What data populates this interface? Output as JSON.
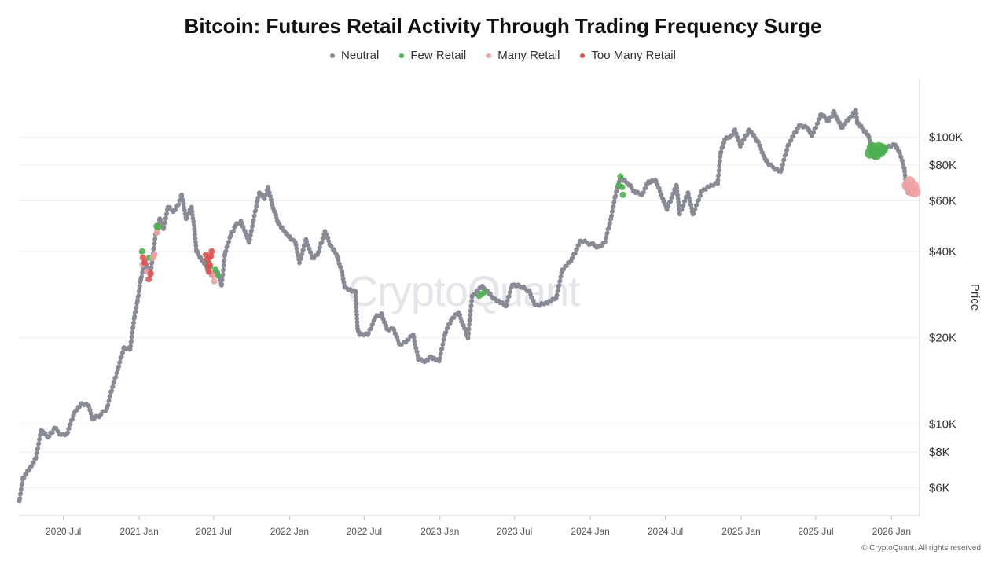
{
  "chart_data": {
    "type": "scatter",
    "title": "Bitcoin: Futures Retail Activity Through Trading Frequency Surge",
    "ylabel": "Price",
    "yscale": "log",
    "ylim": [
      4800,
      160000
    ],
    "xlim": [
      "2020-03-15",
      "2026-03-10"
    ],
    "x_ticks": [
      {
        "date": "2020-07-01",
        "label": "2020 Jul"
      },
      {
        "date": "2021-01-01",
        "label": "2021 Jan"
      },
      {
        "date": "2021-07-01",
        "label": "2021 Jul"
      },
      {
        "date": "2022-01-01",
        "label": "2022 Jan"
      },
      {
        "date": "2022-07-01",
        "label": "2022 Jul"
      },
      {
        "date": "2023-01-01",
        "label": "2023 Jan"
      },
      {
        "date": "2023-07-01",
        "label": "2023 Jul"
      },
      {
        "date": "2024-01-01",
        "label": "2024 Jan"
      },
      {
        "date": "2024-07-01",
        "label": "2024 Jul"
      },
      {
        "date": "2025-01-01",
        "label": "2025 Jan"
      },
      {
        "date": "2025-07-01",
        "label": "2025 Jul"
      },
      {
        "date": "2026-01-01",
        "label": "2026 Jan"
      }
    ],
    "y_ticks": [
      {
        "value": 6000,
        "label": "$6K"
      },
      {
        "value": 8000,
        "label": "$8K"
      },
      {
        "value": 10000,
        "label": "$10K"
      },
      {
        "value": 20000,
        "label": "$20K"
      },
      {
        "value": 40000,
        "label": "$40K"
      },
      {
        "value": 60000,
        "label": "$60K"
      },
      {
        "value": 80000,
        "label": "$80K"
      },
      {
        "value": 100000,
        "label": "$100K"
      }
    ],
    "legend": [
      {
        "name": "Neutral",
        "color": "#8a8a96"
      },
      {
        "name": "Few Retail",
        "color": "#4caf50"
      },
      {
        "name": "Many Retail",
        "color": "#f0a0a0"
      },
      {
        "name": "Too Many Retail",
        "color": "#e05050"
      }
    ],
    "series": [
      {
        "name": "Neutral",
        "color": "#8a8a96",
        "points": [
          [
            "2020-03-16",
            5400
          ],
          [
            "2020-03-25",
            6500
          ],
          [
            "2020-04-10",
            7000
          ],
          [
            "2020-04-25",
            7600
          ],
          [
            "2020-05-08",
            9500
          ],
          [
            "2020-05-25",
            9000
          ],
          [
            "2020-06-10",
            9700
          ],
          [
            "2020-06-25",
            9200
          ],
          [
            "2020-07-10",
            9300
          ],
          [
            "2020-07-28",
            11000
          ],
          [
            "2020-08-15",
            11800
          ],
          [
            "2020-08-31",
            11600
          ],
          [
            "2020-09-10",
            10400
          ],
          [
            "2020-09-30",
            10800
          ],
          [
            "2020-10-15",
            11400
          ],
          [
            "2020-10-25",
            13000
          ],
          [
            "2020-11-10",
            15500
          ],
          [
            "2020-11-25",
            18500
          ],
          [
            "2020-12-10",
            18200
          ],
          [
            "2020-12-20",
            23500
          ],
          [
            "2020-12-28",
            27000
          ],
          [
            "2021-01-05",
            32000
          ],
          [
            "2021-01-15",
            37000
          ],
          [
            "2021-01-28",
            33000
          ],
          [
            "2021-02-10",
            46000
          ],
          [
            "2021-02-20",
            52000
          ],
          [
            "2021-03-01",
            48000
          ],
          [
            "2021-03-12",
            57000
          ],
          [
            "2021-03-25",
            55000
          ],
          [
            "2021-04-05",
            58000
          ],
          [
            "2021-04-14",
            63000
          ],
          [
            "2021-04-25",
            52000
          ],
          [
            "2021-05-08",
            57000
          ],
          [
            "2021-05-15",
            48000
          ],
          [
            "2021-05-20",
            40000
          ],
          [
            "2021-06-10",
            36000
          ],
          [
            "2021-06-25",
            33000
          ],
          [
            "2021-07-10",
            34000
          ],
          [
            "2021-07-20",
            30500
          ],
          [
            "2021-07-28",
            39000
          ],
          [
            "2021-08-10",
            45000
          ],
          [
            "2021-08-22",
            49000
          ],
          [
            "2021-09-05",
            51000
          ],
          [
            "2021-09-15",
            47000
          ],
          [
            "2021-09-25",
            43000
          ],
          [
            "2021-10-05",
            51000
          ],
          [
            "2021-10-15",
            60000
          ],
          [
            "2021-10-20",
            64000
          ],
          [
            "2021-11-01",
            61000
          ],
          [
            "2021-11-10",
            67000
          ],
          [
            "2021-11-20",
            58000
          ],
          [
            "2021-12-05",
            50000
          ],
          [
            "2021-12-20",
            47000
          ],
          [
            "2022-01-05",
            44000
          ],
          [
            "2022-01-15",
            43000
          ],
          [
            "2022-01-25",
            36500
          ],
          [
            "2022-02-10",
            44000
          ],
          [
            "2022-02-25",
            38000
          ],
          [
            "2022-03-10",
            39000
          ],
          [
            "2022-03-28",
            47000
          ],
          [
            "2022-04-10",
            42000
          ],
          [
            "2022-04-25",
            39000
          ],
          [
            "2022-05-08",
            34000
          ],
          [
            "2022-05-15",
            30000
          ],
          [
            "2022-05-28",
            29500
          ],
          [
            "2022-06-10",
            29000
          ],
          [
            "2022-06-15",
            21500
          ],
          [
            "2022-06-20",
            20500
          ],
          [
            "2022-07-10",
            20500
          ],
          [
            "2022-07-28",
            23500
          ],
          [
            "2022-08-12",
            24300
          ],
          [
            "2022-08-25",
            21500
          ],
          [
            "2022-09-10",
            21500
          ],
          [
            "2022-09-25",
            19000
          ],
          [
            "2022-10-10",
            19300
          ],
          [
            "2022-10-28",
            20500
          ],
          [
            "2022-11-10",
            16800
          ],
          [
            "2022-11-25",
            16500
          ],
          [
            "2022-12-10",
            17200
          ],
          [
            "2022-12-30",
            16600
          ],
          [
            "2023-01-14",
            20800
          ],
          [
            "2023-01-28",
            23000
          ],
          [
            "2023-02-15",
            24500
          ],
          [
            "2023-03-10",
            20000
          ],
          [
            "2023-03-20",
            28000
          ],
          [
            "2023-04-14",
            30300
          ],
          [
            "2023-05-10",
            27500
          ],
          [
            "2023-06-10",
            25800
          ],
          [
            "2023-06-25",
            30500
          ],
          [
            "2023-07-15",
            30200
          ],
          [
            "2023-08-05",
            29200
          ],
          [
            "2023-08-20",
            26000
          ],
          [
            "2023-09-15",
            26500
          ],
          [
            "2023-10-10",
            27500
          ],
          [
            "2023-10-25",
            34500
          ],
          [
            "2023-11-15",
            37000
          ],
          [
            "2023-12-08",
            43500
          ],
          [
            "2024-01-03",
            42500
          ],
          [
            "2024-01-20",
            41500
          ],
          [
            "2024-02-05",
            43000
          ],
          [
            "2024-02-20",
            52000
          ],
          [
            "2024-03-01",
            62000
          ],
          [
            "2024-03-13",
            72000
          ],
          [
            "2024-04-01",
            69000
          ],
          [
            "2024-04-20",
            64000
          ],
          [
            "2024-05-05",
            63000
          ],
          [
            "2024-05-21",
            70000
          ],
          [
            "2024-06-07",
            71000
          ],
          [
            "2024-06-25",
            61000
          ],
          [
            "2024-07-05",
            56000
          ],
          [
            "2024-07-28",
            68000
          ],
          [
            "2024-08-05",
            54000
          ],
          [
            "2024-08-25",
            64000
          ],
          [
            "2024-09-06",
            54000
          ],
          [
            "2024-09-28",
            65000
          ],
          [
            "2024-10-20",
            68000
          ],
          [
            "2024-11-05",
            69000
          ],
          [
            "2024-11-12",
            88000
          ],
          [
            "2024-11-22",
            98000
          ],
          [
            "2024-12-05",
            100000
          ],
          [
            "2024-12-17",
            106000
          ],
          [
            "2024-12-30",
            93000
          ],
          [
            "2025-01-20",
            106000
          ],
          [
            "2025-02-10",
            97000
          ],
          [
            "2025-02-28",
            84000
          ],
          [
            "2025-03-10",
            80000
          ],
          [
            "2025-04-07",
            76000
          ],
          [
            "2025-04-25",
            94000
          ],
          [
            "2025-05-22",
            110000
          ],
          [
            "2025-06-10",
            108000
          ],
          [
            "2025-06-22",
            101000
          ],
          [
            "2025-07-14",
            120000
          ],
          [
            "2025-08-01",
            114000
          ],
          [
            "2025-08-14",
            123000
          ],
          [
            "2025-09-01",
            108000
          ],
          [
            "2025-09-20",
            116000
          ],
          [
            "2025-10-06",
            124000
          ],
          [
            "2025-10-10",
            112000
          ],
          [
            "2025-11-05",
            102000
          ],
          [
            "2025-11-21",
            85000
          ],
          [
            "2025-12-10",
            92000
          ],
          [
            "2026-01-10",
            94000
          ],
          [
            "2026-01-20",
            89000
          ],
          [
            "2026-02-01",
            78000
          ],
          [
            "2026-02-05",
            68000
          ],
          [
            "2026-02-10",
            64000
          ]
        ]
      },
      {
        "name": "Few Retail",
        "color": "#4caf50",
        "points": [
          [
            "2021-01-08",
            40000
          ],
          [
            "2021-01-25",
            38000
          ],
          [
            "2021-02-12",
            49000
          ],
          [
            "2021-02-16",
            48500
          ],
          [
            "2021-06-18",
            37000
          ],
          [
            "2021-06-22",
            35500
          ],
          [
            "2021-07-05",
            34500
          ],
          [
            "2021-07-10",
            33000
          ],
          [
            "2023-04-06",
            28000
          ],
          [
            "2023-04-12",
            28400
          ],
          [
            "2023-04-18",
            28800
          ],
          [
            "2024-03-10",
            68000
          ],
          [
            "2024-03-14",
            73000
          ],
          [
            "2024-03-18",
            67000
          ],
          [
            "2024-03-20",
            63000
          ],
          [
            "2025-11-10",
            88000
          ],
          [
            "2025-11-15",
            92000
          ],
          [
            "2025-11-20",
            90000
          ],
          [
            "2025-11-25",
            87000
          ],
          [
            "2025-12-01",
            92000
          ],
          [
            "2025-12-05",
            89000
          ],
          [
            "2025-12-10",
            91000
          ]
        ]
      },
      {
        "name": "Many Retail",
        "color": "#f0a0a0",
        "points": [
          [
            "2021-01-09",
            36000
          ],
          [
            "2021-01-20",
            34000
          ],
          [
            "2021-02-03",
            38000
          ],
          [
            "2021-02-07",
            39000
          ],
          [
            "2021-02-13",
            46500
          ],
          [
            "2021-06-20",
            38000
          ],
          [
            "2021-06-28",
            33000
          ],
          [
            "2021-07-02",
            31500
          ],
          [
            "2026-02-08",
            68000
          ],
          [
            "2026-02-14",
            70000
          ],
          [
            "2026-02-18",
            65000
          ],
          [
            "2026-02-23",
            67500
          ],
          [
            "2026-02-27",
            64500
          ]
        ]
      },
      {
        "name": "Too Many Retail",
        "color": "#e05050",
        "points": [
          [
            "2021-01-10",
            38000
          ],
          [
            "2021-01-14",
            36500
          ],
          [
            "2021-01-24",
            32000
          ],
          [
            "2021-01-29",
            33500
          ],
          [
            "2021-06-12",
            39000
          ],
          [
            "2021-06-15",
            37500
          ],
          [
            "2021-06-17",
            35500
          ],
          [
            "2021-06-19",
            34000
          ],
          [
            "2021-06-21",
            36000
          ],
          [
            "2021-06-24",
            38500
          ],
          [
            "2021-06-26",
            40000
          ]
        ]
      }
    ]
  },
  "watermark": "CryptoQuant",
  "copyright": "© CryptoQuant. All rights reserved"
}
